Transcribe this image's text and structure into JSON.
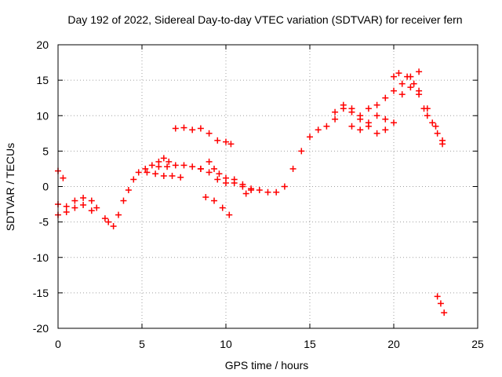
{
  "chart_data": {
    "type": "scatter",
    "title": "Day 192 of 2022, Sidereal Day-to-day VTEC variation (SDTVAR) for receiver fern",
    "xlabel": "GPS time / hours",
    "ylabel": "SDTVAR / TECUs",
    "xlim": [
      0,
      25
    ],
    "ylim": [
      -20,
      20
    ],
    "x_ticks": [
      "0",
      "5",
      "10",
      "15",
      "20",
      "25"
    ],
    "y_ticks": [
      "20",
      "15",
      "10",
      "5",
      "0",
      "-5",
      "-10",
      "-15",
      "-20"
    ],
    "grid": true,
    "colors": {
      "series": "#ff0000",
      "grid": "#a0a0a0",
      "frame": "#000000"
    },
    "series": [
      {
        "points": [
          [
            0.0,
            2.2
          ],
          [
            0.3,
            1.2
          ],
          [
            0.0,
            -2.5
          ],
          [
            0.5,
            -2.8
          ],
          [
            1.0,
            -2.0
          ],
          [
            1.5,
            -1.6
          ],
          [
            2.0,
            -2.0
          ],
          [
            2.3,
            -3.0
          ],
          [
            0.0,
            -4.0
          ],
          [
            0.5,
            -3.6
          ],
          [
            1.0,
            -3.0
          ],
          [
            1.5,
            -2.6
          ],
          [
            2.0,
            -3.4
          ],
          [
            2.8,
            -4.5
          ],
          [
            3.0,
            -5.0
          ],
          [
            3.3,
            -5.6
          ],
          [
            3.6,
            -4.0
          ],
          [
            3.9,
            -2.0
          ],
          [
            4.2,
            -0.5
          ],
          [
            4.5,
            1.0
          ],
          [
            4.8,
            2.0
          ],
          [
            5.2,
            2.5
          ],
          [
            5.6,
            3.0
          ],
          [
            6.0,
            3.5
          ],
          [
            6.3,
            4.0
          ],
          [
            6.6,
            3.5
          ],
          [
            5.3,
            2.0
          ],
          [
            5.8,
            1.8
          ],
          [
            6.3,
            1.5
          ],
          [
            6.8,
            1.5
          ],
          [
            7.3,
            1.3
          ],
          [
            6.0,
            2.8
          ],
          [
            6.5,
            2.8
          ],
          [
            7.0,
            3.0
          ],
          [
            7.5,
            3.0
          ],
          [
            8.0,
            2.8
          ],
          [
            8.5,
            2.5
          ],
          [
            9.0,
            2.0
          ],
          [
            9.5,
            1.0
          ],
          [
            10.0,
            0.5
          ],
          [
            10.5,
            0.5
          ],
          [
            11.0,
            0.0
          ],
          [
            11.5,
            -0.3
          ],
          [
            12.0,
            -0.5
          ],
          [
            12.5,
            -0.8
          ],
          [
            13.0,
            -0.8
          ],
          [
            8.5,
            2.5
          ],
          [
            9.0,
            3.5
          ],
          [
            9.3,
            2.5
          ],
          [
            9.6,
            1.8
          ],
          [
            10.0,
            1.2
          ],
          [
            10.5,
            1.0
          ],
          [
            11.0,
            0.3
          ],
          [
            11.5,
            -0.5
          ],
          [
            11.2,
            -1.0
          ],
          [
            7.0,
            8.2
          ],
          [
            7.5,
            8.3
          ],
          [
            8.0,
            8.0
          ],
          [
            8.5,
            8.2
          ],
          [
            9.0,
            7.5
          ],
          [
            9.5,
            6.5
          ],
          [
            10.0,
            6.3
          ],
          [
            10.3,
            6.0
          ],
          [
            8.8,
            -1.5
          ],
          [
            9.3,
            -2.0
          ],
          [
            9.8,
            -3.0
          ],
          [
            10.2,
            -4.0
          ],
          [
            13.5,
            0.0
          ],
          [
            14.0,
            2.5
          ],
          [
            14.5,
            5.0
          ],
          [
            15.0,
            7.0
          ],
          [
            15.5,
            8.0
          ],
          [
            16.0,
            8.5
          ],
          [
            16.5,
            10.5
          ],
          [
            17.0,
            11.5
          ],
          [
            17.5,
            10.5
          ],
          [
            18.0,
            9.5
          ],
          [
            18.5,
            8.5
          ],
          [
            19.0,
            7.5
          ],
          [
            19.5,
            8.0
          ],
          [
            20.0,
            9.0
          ],
          [
            16.5,
            9.5
          ],
          [
            17.0,
            11.0
          ],
          [
            17.5,
            11.0
          ],
          [
            18.0,
            10.0
          ],
          [
            18.5,
            11.0
          ],
          [
            19.0,
            11.5
          ],
          [
            19.5,
            12.5
          ],
          [
            20.0,
            13.5
          ],
          [
            20.5,
            14.5
          ],
          [
            21.0,
            15.5
          ],
          [
            21.5,
            16.2
          ],
          [
            17.5,
            8.5
          ],
          [
            18.0,
            8.0
          ],
          [
            18.5,
            9.0
          ],
          [
            19.0,
            10.0
          ],
          [
            19.5,
            9.5
          ],
          [
            20.0,
            15.5
          ],
          [
            20.3,
            16.0
          ],
          [
            20.8,
            15.5
          ],
          [
            21.2,
            14.5
          ],
          [
            21.5,
            13.0
          ],
          [
            21.8,
            11.0
          ],
          [
            22.0,
            10.0
          ],
          [
            22.3,
            9.0
          ],
          [
            22.6,
            7.5
          ],
          [
            22.9,
            6.5
          ],
          [
            20.5,
            13.0
          ],
          [
            21.0,
            14.0
          ],
          [
            21.5,
            13.5
          ],
          [
            22.0,
            11.0
          ],
          [
            22.5,
            8.5
          ],
          [
            22.9,
            6.0
          ],
          [
            22.6,
            -15.5
          ],
          [
            22.8,
            -16.5
          ],
          [
            23.0,
            -17.8
          ]
        ]
      }
    ]
  }
}
